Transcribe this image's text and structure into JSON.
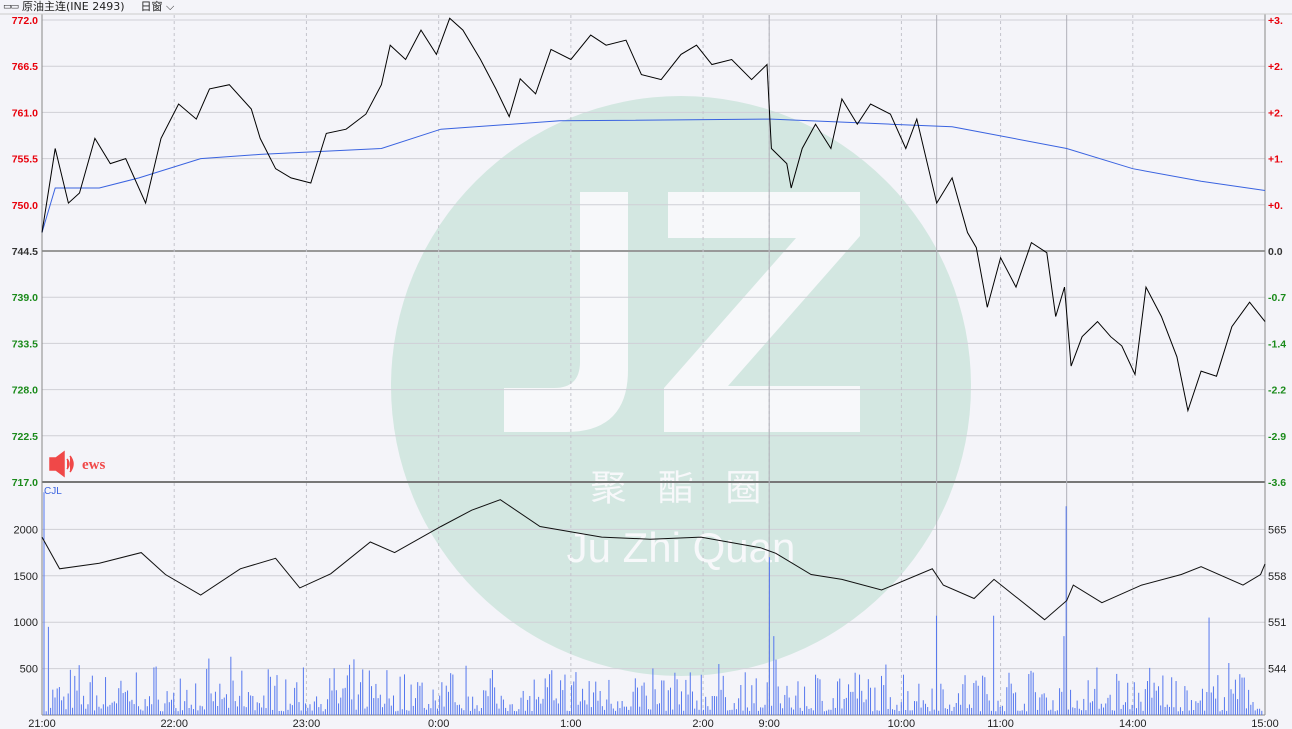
{
  "header": {
    "icon": "kline-toggle-icon",
    "instrument": "原油主连(INE 2493)",
    "mode": "日窗",
    "mode_icon": "chevron-down-icon"
  },
  "watermark": {
    "letters": "JZ",
    "cn": "聚 酯 圈",
    "en": "Ju Zhi Quan",
    "color": "#d3e7e1"
  },
  "news": {
    "icon": "speaker-icon",
    "label": "ews",
    "color": "#f04848"
  },
  "colors": {
    "up": "#e8000b",
    "down": "#1a8a1a",
    "flat": "#333333",
    "price": "#000000",
    "avg": "#3a63e0",
    "volume": "#5577ee"
  },
  "chart_data": [
    {
      "type": "line",
      "panel": "price",
      "ylim": [
        717.0,
        772.0
      ],
      "left_ticks": [
        "772.0",
        "766.5",
        "761.0",
        "755.5",
        "750.0",
        "744.5",
        "739.0",
        "733.5",
        "728.0",
        "722.5",
        "717.0"
      ],
      "right_ticks": [
        "+3.",
        "+2.",
        "+2.",
        "+1.",
        "+0.",
        "0.0",
        "-0.7",
        "-1.4",
        "-2.2",
        "-2.9",
        "-3.6"
      ],
      "reference": 744.5,
      "x_ticks": [
        "21:00",
        "22:00",
        "23:00",
        "0:00",
        "1:00",
        "2:00",
        "9:00",
        "10:00",
        "11:00",
        "14:00",
        "15:00"
      ],
      "series": [
        {
          "points": [
            [
              "21:00",
              746.7
            ],
            [
              "21:06",
              756.7
            ],
            [
              "21:12",
              750.2
            ],
            [
              "21:17",
              751.4
            ],
            [
              "21:24",
              757.9
            ],
            [
              "21:31",
              754.9
            ],
            [
              "21:38",
              755.5
            ],
            [
              "21:47",
              750.2
            ],
            [
              "21:54",
              757.9
            ],
            [
              "22:02",
              762.0
            ],
            [
              "22:10",
              760.2
            ],
            [
              "22:16",
              763.8
            ],
            [
              "22:25",
              764.3
            ],
            [
              "22:35",
              761.4
            ],
            [
              "22:39",
              757.9
            ],
            [
              "22:46",
              754.3
            ],
            [
              "22:53",
              753.2
            ],
            [
              "23:02",
              752.6
            ],
            [
              "23:09",
              758.5
            ],
            [
              "23:18",
              759.0
            ],
            [
              "23:27",
              760.8
            ],
            [
              "23:34",
              764.3
            ],
            [
              "23:38",
              769.0
            ],
            [
              "23:45",
              767.3
            ],
            [
              "23:52",
              770.8
            ],
            [
              "23:59",
              767.9
            ],
            [
              "0:05",
              772.2
            ],
            [
              "0:11",
              770.8
            ],
            [
              "0:19",
              767.3
            ],
            [
              "0:26",
              763.8
            ],
            [
              "0:32",
              760.5
            ],
            [
              "0:37",
              765.0
            ],
            [
              "0:44",
              763.2
            ],
            [
              "0:51",
              768.5
            ],
            [
              "1:00",
              767.3
            ],
            [
              "1:09",
              770.2
            ],
            [
              "1:16",
              769.0
            ],
            [
              "1:25",
              769.6
            ],
            [
              "1:32",
              765.5
            ],
            [
              "1:41",
              764.9
            ],
            [
              "1:50",
              767.9
            ],
            [
              "1:57",
              769.0
            ],
            [
              "2:04",
              766.7
            ],
            [
              "2:13",
              767.3
            ],
            [
              "2:22",
              764.9
            ],
            [
              "2:29",
              766.7
            ],
            [
              "9:01",
              756.7
            ],
            [
              "9:08",
              754.9
            ],
            [
              "9:10",
              752.0
            ],
            [
              "9:15",
              756.7
            ],
            [
              "9:21",
              759.6
            ],
            [
              "9:28",
              756.7
            ],
            [
              "9:33",
              762.6
            ],
            [
              "9:40",
              759.6
            ],
            [
              "9:46",
              762.0
            ],
            [
              "9:55",
              760.8
            ],
            [
              "10:02",
              756.7
            ],
            [
              "10:07",
              760.2
            ],
            [
              "10:31",
              750.2
            ],
            [
              "10:38",
              753.2
            ],
            [
              "10:45",
              746.7
            ],
            [
              "10:49",
              744.9
            ],
            [
              "10:54",
              737.8
            ],
            [
              "11:00",
              743.7
            ],
            [
              "11:07",
              740.2
            ],
            [
              "11:14",
              745.5
            ],
            [
              "11:21",
              744.3
            ],
            [
              "11:25",
              736.7
            ],
            [
              "11:29",
              740.2
            ],
            [
              "13:32",
              730.8
            ],
            [
              "13:37",
              734.3
            ],
            [
              "13:44",
              736.1
            ],
            [
              "13:50",
              734.3
            ],
            [
              "13:55",
              733.2
            ],
            [
              "14:01",
              729.8
            ],
            [
              "14:06",
              740.2
            ],
            [
              "14:13",
              736.7
            ],
            [
              "14:20",
              731.9
            ],
            [
              "14:25",
              725.5
            ],
            [
              "14:31",
              730.2
            ],
            [
              "14:38",
              729.6
            ],
            [
              "14:45",
              735.5
            ],
            [
              "14:53",
              738.4
            ],
            [
              "15:00",
              736.1
            ]
          ]
        },
        {
          "points": [
            [
              "21:00",
              746.7
            ],
            [
              "21:06",
              752.0
            ],
            [
              "21:26",
              752.0
            ],
            [
              "21:44",
              753.2
            ],
            [
              "22:12",
              755.5
            ],
            [
              "22:39",
              756.0
            ],
            [
              "23:34",
              756.7
            ],
            [
              "0:01",
              759.0
            ],
            [
              "0:55",
              760.0
            ],
            [
              "9:01",
              760.2
            ],
            [
              "9:55",
              759.6
            ],
            [
              "10:38",
              759.3
            ],
            [
              "11:30",
              756.7
            ],
            [
              "14:00",
              754.3
            ],
            [
              "14:31",
              752.8
            ],
            [
              "15:00",
              751.7
            ]
          ]
        }
      ]
    },
    {
      "type": "bar",
      "panel": "volume",
      "label": "CJL",
      "left_ticks": [
        "2000",
        "1500",
        "1000",
        "500"
      ],
      "right_ticks": [
        "565",
        "558",
        "551",
        "544"
      ],
      "volume_ylim": [
        0,
        2500
      ],
      "line_ylim": [
        541,
        574
      ],
      "volume_peaks": [
        [
          "21:00",
          2400
        ],
        [
          "21:02",
          950
        ],
        [
          "9:00",
          1700
        ],
        [
          "9:02",
          850
        ],
        [
          "10:31",
          1070
        ],
        [
          "10:57",
          1070
        ],
        [
          "11:30",
          2250
        ],
        [
          "11:29",
          850
        ],
        [
          "14:35",
          1050
        ]
      ],
      "line": [
        [
          "21:00",
          566.2
        ],
        [
          "21:08",
          561.7
        ],
        [
          "21:26",
          562.5
        ],
        [
          "21:45",
          564.0
        ],
        [
          "21:56",
          560.9
        ],
        [
          "22:12",
          558.0
        ],
        [
          "22:30",
          561.7
        ],
        [
          "22:46",
          563.2
        ],
        [
          "22:57",
          559.0
        ],
        [
          "23:11",
          561.0
        ],
        [
          "23:29",
          565.5
        ],
        [
          "23:40",
          564.0
        ],
        [
          "0:01",
          567.7
        ],
        [
          "0:15",
          570.0
        ],
        [
          "0:28",
          571.5
        ],
        [
          "0:46",
          567.7
        ],
        [
          "1:14",
          566.2
        ],
        [
          "1:36",
          565.9
        ],
        [
          "1:59",
          566.2
        ],
        [
          "2:26",
          564.7
        ],
        [
          "9:03",
          563.9
        ],
        [
          "9:19",
          560.9
        ],
        [
          "9:33",
          560.2
        ],
        [
          "9:51",
          558.7
        ],
        [
          "10:14",
          561.7
        ],
        [
          "10:34",
          559.4
        ],
        [
          "10:48",
          557.5
        ],
        [
          "10:57",
          560.2
        ],
        [
          "11:20",
          554.5
        ],
        [
          "11:30",
          557.2
        ],
        [
          "13:33",
          559.4
        ],
        [
          "13:46",
          556.9
        ],
        [
          "14:04",
          559.4
        ],
        [
          "14:22",
          560.9
        ],
        [
          "14:31",
          562.0
        ],
        [
          "14:50",
          559.4
        ],
        [
          "14:58",
          560.9
        ],
        [
          "15:00",
          562.4
        ]
      ]
    }
  ]
}
